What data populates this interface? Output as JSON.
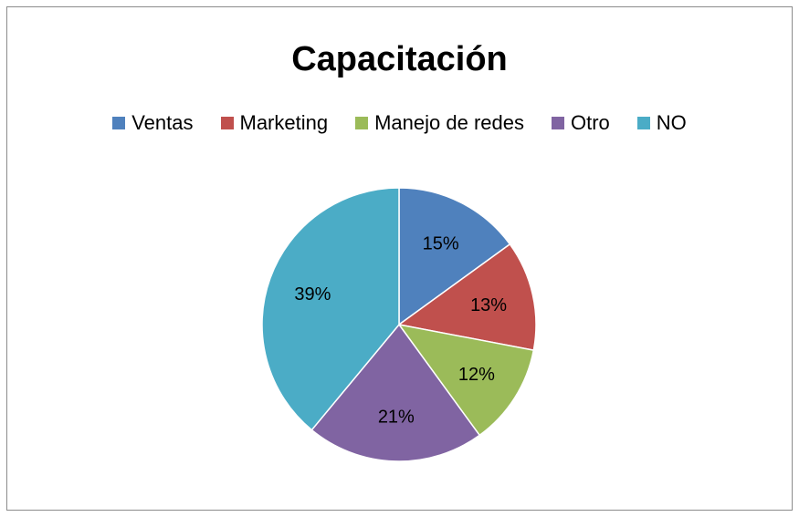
{
  "chart_data": {
    "type": "pie",
    "title": "Capacitación",
    "legend_position": "top",
    "categories": [
      "Ventas",
      "Marketing",
      "Manejo de redes",
      "Otro",
      "NO"
    ],
    "values": [
      15,
      13,
      12,
      21,
      39
    ],
    "labels": [
      "15%",
      "13%",
      "12%",
      "21%",
      "39%"
    ],
    "colors": [
      "#4f81bd",
      "#c0504d",
      "#9bbb59",
      "#8064a2",
      "#4bacc6"
    ]
  }
}
